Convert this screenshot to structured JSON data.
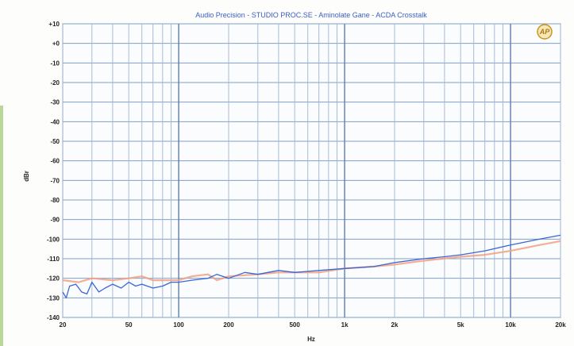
{
  "chart_data": {
    "type": "line",
    "title": "Audio Precision - STUDIO PROC.SE - Aminolate Gane - ACDA Crosstalk",
    "xlabel": "Hz",
    "ylabel": "dBr",
    "xscale": "log",
    "xlim": [
      20,
      20000
    ],
    "ylim": [
      -140,
      10
    ],
    "yticks": [
      10,
      0,
      -10,
      -20,
      -30,
      -40,
      -50,
      -60,
      -70,
      -80,
      -90,
      -100,
      -110,
      -120,
      -130,
      -140
    ],
    "ytick_labels": [
      "+10",
      "+0",
      "-10",
      "-20",
      "-30",
      "-40",
      "-50",
      "-60",
      "-70",
      "-80",
      "-90",
      "-100",
      "-110",
      "-120",
      "-130",
      "-140"
    ],
    "xticks": [
      20,
      50,
      100,
      200,
      500,
      1000,
      2000,
      5000,
      10000,
      20000
    ],
    "xtick_labels": [
      "20",
      "50",
      "100",
      "200",
      "500",
      "1k",
      "2k",
      "5k",
      "10k",
      "20k"
    ],
    "grid": true,
    "logo_text": "AP",
    "series": [
      {
        "color": "#3a66d6",
        "x": [
          20,
          21,
          22,
          24,
          26,
          28,
          30,
          33,
          36,
          40,
          45,
          50,
          55,
          60,
          70,
          80,
          90,
          100,
          120,
          150,
          170,
          200,
          250,
          300,
          400,
          500,
          700,
          1000,
          1500,
          2000,
          3000,
          4000,
          5000,
          7000,
          10000,
          15000,
          20000
        ],
        "y": [
          -127,
          -130,
          -124,
          -123,
          -127,
          -128,
          -122,
          -127,
          -125,
          -123,
          -125,
          -122,
          -124,
          -123,
          -125,
          -124,
          -122,
          -122,
          -121,
          -120,
          -118,
          -120,
          -117,
          -118,
          -116,
          -117,
          -116,
          -115,
          -114,
          -112,
          -110,
          -109,
          -108,
          -106,
          -103,
          -100,
          -98
        ]
      },
      {
        "color": "#f2a080",
        "x": [
          20,
          25,
          30,
          40,
          50,
          60,
          70,
          80,
          100,
          120,
          150,
          170,
          200,
          300,
          400,
          500,
          700,
          1000,
          1500,
          2000,
          3000,
          5000,
          7000,
          10000,
          15000,
          20000
        ],
        "y": [
          -121,
          -122,
          -120,
          -121,
          -120,
          -119,
          -121,
          -121,
          -121,
          -119,
          -118,
          -121,
          -119,
          -118,
          -117,
          -117,
          -117,
          -115,
          -114,
          -113,
          -111,
          -109,
          -108,
          -106,
          -103,
          -101
        ]
      }
    ]
  }
}
